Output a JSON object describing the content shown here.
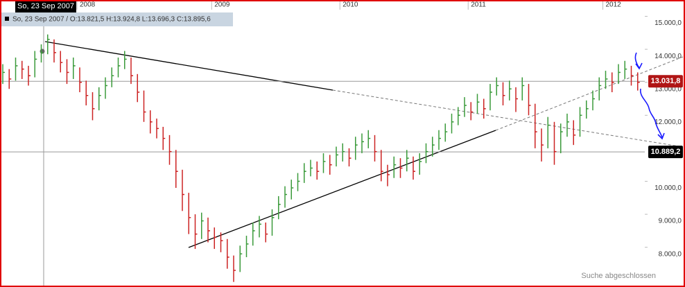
{
  "chart_data": {
    "type": "ohlc",
    "header_date": "So, 23 Sep 2007",
    "info": "So, 23 Sep 2007 / O:13.821,5 H:13.924,8 L:13.696,3 C:13.895,6",
    "status": "Suche abgeschlossen",
    "up_color": "#3a9a3a",
    "down_color": "#cc2222",
    "ylim": [
      6880,
      15200
    ],
    "yticks": [
      {
        "value": 15000,
        "label": "15.000,0"
      },
      {
        "value": 14000,
        "label": "14.000,0"
      },
      {
        "value": 13000,
        "label": "13.000,0"
      },
      {
        "value": 12000,
        "label": "12.000,0"
      },
      {
        "value": 10000,
        "label": "10.000,0"
      },
      {
        "value": 9000,
        "label": "9.000,0"
      },
      {
        "value": 8000,
        "label": "8.000,0"
      }
    ],
    "price_lines": [
      {
        "value": 13031.8,
        "label": "13.031,8",
        "color": "#b01515"
      },
      {
        "value": 10889.2,
        "label": "10.889,2",
        "color": "#000000"
      }
    ],
    "categories": [
      null,
      null,
      null,
      null,
      null,
      null,
      null,
      null,
      null,
      null,
      null,
      null,
      "2008",
      null,
      null,
      null,
      null,
      null,
      null,
      null,
      null,
      null,
      null,
      null,
      null,
      null,
      null,
      null,
      null,
      null,
      null,
      null,
      null,
      "2009",
      null,
      null,
      null,
      null,
      null,
      null,
      null,
      null,
      null,
      null,
      null,
      null,
      null,
      null,
      null,
      null,
      null,
      null,
      null,
      "2010",
      null,
      null,
      null,
      null,
      null,
      null,
      null,
      null,
      null,
      null,
      null,
      null,
      null,
      null,
      null,
      null,
      null,
      null,
      null,
      "2011",
      null,
      null,
      null,
      null,
      null,
      null,
      null,
      null,
      null,
      null,
      null,
      null,
      null,
      null,
      null,
      null,
      null,
      null,
      null,
      null,
      "2012",
      null,
      null,
      null,
      null,
      null
    ],
    "close": [
      13300,
      13100,
      13500,
      13400,
      13200,
      13700,
      13900,
      14300,
      13900,
      13600,
      13300,
      13500,
      13000,
      12600,
      12200,
      12600,
      12900,
      13200,
      13500,
      13700,
      13200,
      12700,
      12100,
      11800,
      11600,
      11300,
      10900,
      10300,
      9600,
      8900,
      8400,
      8800,
      8500,
      8300,
      8200,
      7700,
      7300,
      7800,
      8100,
      8500,
      8700,
      8400,
      8900,
      9300,
      9600,
      9800,
      10000,
      10300,
      10400,
      10300,
      10600,
      10500,
      10800,
      10900,
      10700,
      11100,
      11200,
      11300,
      10900,
      10300,
      10200,
      10500,
      10400,
      10700,
      10300,
      10600,
      10900,
      11100,
      11300,
      11500,
      11800,
      12000,
      12300,
      12100,
      12400,
      12200,
      12700,
      12900,
      12600,
      12800,
      12500,
      12900,
      12300,
      11500,
      11100,
      11700,
      10900,
      11500,
      11800,
      11400,
      12000,
      12200,
      12500,
      12900,
      13100,
      13000,
      13300,
      13400,
      13200,
      13000
    ],
    "high": [
      13550,
      13400,
      13750,
      13650,
      13500,
      13950,
      14150,
      14450,
      14300,
      13950,
      13700,
      13750,
      13450,
      13050,
      12700,
      12850,
      13150,
      13450,
      13750,
      13950,
      13750,
      13250,
      12750,
      12150,
      11900,
      11650,
      11400,
      10950,
      10350,
      9650,
      9000,
      9050,
      8900,
      8600,
      8450,
      8250,
      7750,
      8050,
      8350,
      8750,
      8950,
      8750,
      9150,
      9550,
      9850,
      10050,
      10250,
      10550,
      10650,
      10600,
      10850,
      10800,
      11050,
      11150,
      11000,
      11350,
      11450,
      11550,
      11400,
      10950,
      10500,
      10750,
      10700,
      10950,
      10750,
      10850,
      11150,
      11350,
      11550,
      11750,
      12050,
      12250,
      12550,
      12400,
      12650,
      12500,
      12950,
      13150,
      13000,
      13050,
      12850,
      13150,
      12950,
      12350,
      11600,
      11950,
      11800,
      11750,
      12050,
      11850,
      12250,
      12450,
      12750,
      13150,
      13350,
      13300,
      13550,
      13650,
      13500,
      13300
    ],
    "low": [
      12950,
      12800,
      13050,
      13100,
      12900,
      13150,
      13600,
      13850,
      13600,
      13300,
      12950,
      13100,
      12700,
      12300,
      11850,
      12150,
      12500,
      12850,
      13150,
      13400,
      12950,
      12400,
      11800,
      11450,
      11300,
      10950,
      10500,
      9800,
      9100,
      8400,
      7950,
      8250,
      8150,
      7950,
      7850,
      7350,
      6950,
      7250,
      7700,
      8050,
      8300,
      8150,
      8350,
      8850,
      9200,
      9450,
      9700,
      9950,
      10150,
      10050,
      10250,
      10200,
      10450,
      10600,
      10450,
      10650,
      10850,
      11000,
      10600,
      10000,
      9850,
      10100,
      10100,
      10300,
      10050,
      10200,
      10550,
      10750,
      10950,
      11200,
      11450,
      11700,
      11950,
      11850,
      12050,
      11900,
      12150,
      12600,
      12300,
      12450,
      12100,
      12450,
      12000,
      11000,
      10600,
      11000,
      10500,
      10850,
      11350,
      11100,
      11350,
      11900,
      12150,
      12450,
      12800,
      12700,
      12950,
      13100,
      12900,
      12750
    ]
  }
}
